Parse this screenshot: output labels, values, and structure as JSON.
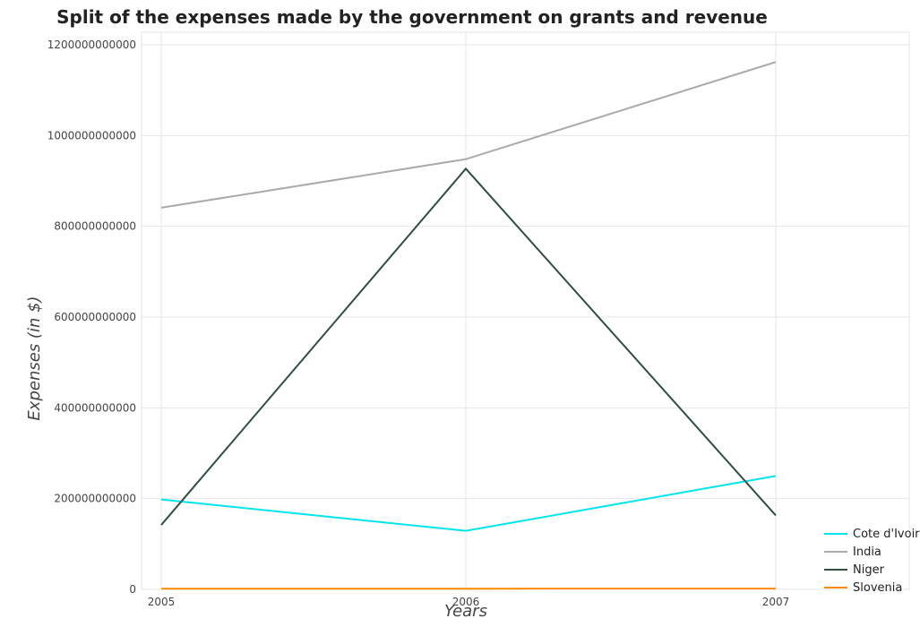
{
  "chart_data": {
    "type": "line",
    "title": "Split of the expenses made by the government on grants and revenue",
    "xlabel": "Years",
    "ylabel": "Expenses (in $)",
    "x": [
      "2005",
      "2006",
      "2007"
    ],
    "ylim": [
      0,
      1200000000000
    ],
    "yticks": [
      0,
      200000000000,
      400000000000,
      600000000000,
      800000000000,
      1000000000000,
      1200000000000
    ],
    "ytick_labels": [
      "0",
      "200000000000",
      "400000000000",
      "600000000000",
      "800000000000",
      "1000000000000",
      "1200000000000"
    ],
    "grid": true,
    "legend_position": "bottom-right",
    "series": [
      {
        "name": "Cote d'Ivoire",
        "color": "#00e5ee",
        "values": [
          198000000000,
          129000000000,
          250000000000
        ]
      },
      {
        "name": "India",
        "color": "#aaaaaa",
        "values": [
          841000000000,
          948000000000,
          1162000000000
        ]
      },
      {
        "name": "Niger",
        "color": "#2f4f3f",
        "values": [
          142000000000,
          927000000000,
          163000000000
        ]
      },
      {
        "name": "Slovenia",
        "color": "#ff8c00",
        "values": [
          1500000000,
          1600000000,
          1700000000
        ]
      }
    ]
  }
}
